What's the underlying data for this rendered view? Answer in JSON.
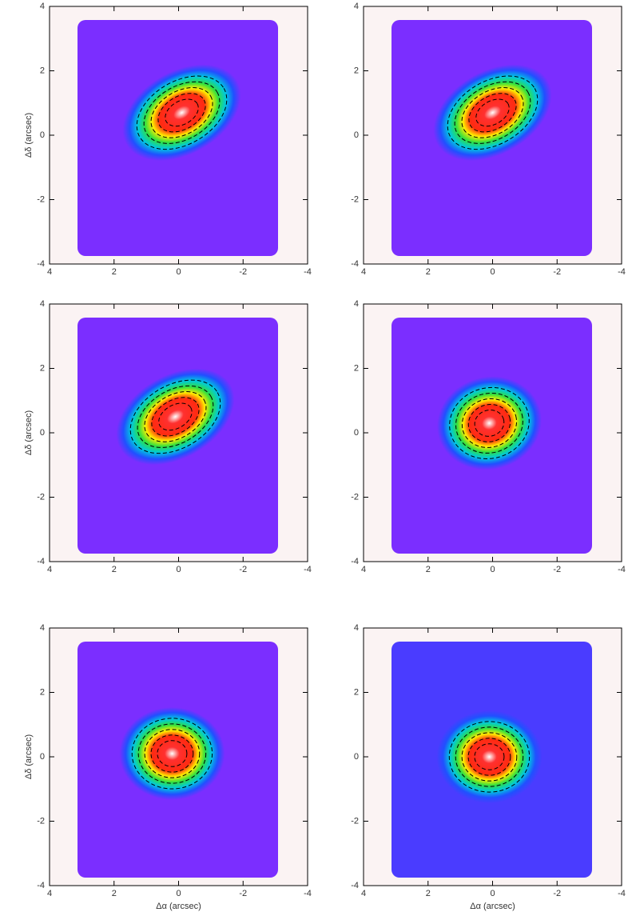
{
  "chart_data": [
    {
      "type": "heatmap",
      "ylabel": "Δδ (arcsec)",
      "xlim": [
        4,
        -4
      ],
      "ylim": [
        -4,
        4
      ],
      "xticks": [
        4,
        2,
        0,
        -2,
        -4
      ],
      "yticks": [
        4,
        2,
        0,
        -2,
        -4
      ],
      "peak": [
        -0.1,
        0.7
      ],
      "color": "#7b2eff"
    },
    {
      "type": "heatmap",
      "xlim": [
        4,
        -4
      ],
      "ylim": [
        -4,
        4
      ],
      "xticks": [
        4,
        2,
        0,
        -2,
        -4
      ],
      "yticks": [
        4,
        2,
        0,
        -2,
        -4
      ],
      "peak": [
        0,
        0.7
      ],
      "color": "#7b2eff"
    },
    {
      "type": "heatmap",
      "ylabel": "Δδ (arcsec)",
      "xlim": [
        4,
        -4
      ],
      "ylim": [
        -4,
        4
      ],
      "xticks": [
        4,
        2,
        0,
        -2,
        -4
      ],
      "yticks": [
        4,
        2,
        0,
        -2,
        -4
      ],
      "peak": [
        0.1,
        0.5
      ],
      "color": "#7b2eff"
    },
    {
      "type": "heatmap",
      "xlim": [
        4,
        -4
      ],
      "ylim": [
        -4,
        4
      ],
      "xticks": [
        4,
        2,
        0,
        -2,
        -4
      ],
      "yticks": [
        4,
        2,
        0,
        -2,
        -4
      ],
      "peak": [
        0.1,
        0.3
      ],
      "color": "#7b2eff"
    },
    {
      "type": "heatmap",
      "xlabel": "Δα (arcsec)",
      "ylabel": "Δδ (arcsec)",
      "xlim": [
        4,
        -4
      ],
      "ylim": [
        -4,
        4
      ],
      "xticks": [
        4,
        2,
        0,
        -2,
        -4
      ],
      "yticks": [
        4,
        2,
        0,
        -2,
        -4
      ],
      "peak": [
        0.2,
        0.1
      ],
      "color": "#7b2eff"
    },
    {
      "type": "heatmap",
      "xlabel": "Δα (arcsec)",
      "xlim": [
        4,
        -4
      ],
      "ylim": [
        -4,
        4
      ],
      "xticks": [
        4,
        2,
        0,
        -2,
        -4
      ],
      "yticks": [
        4,
        2,
        0,
        -2,
        -4
      ],
      "peak": [
        0.1,
        0
      ],
      "color": "#4a3cff"
    }
  ]
}
